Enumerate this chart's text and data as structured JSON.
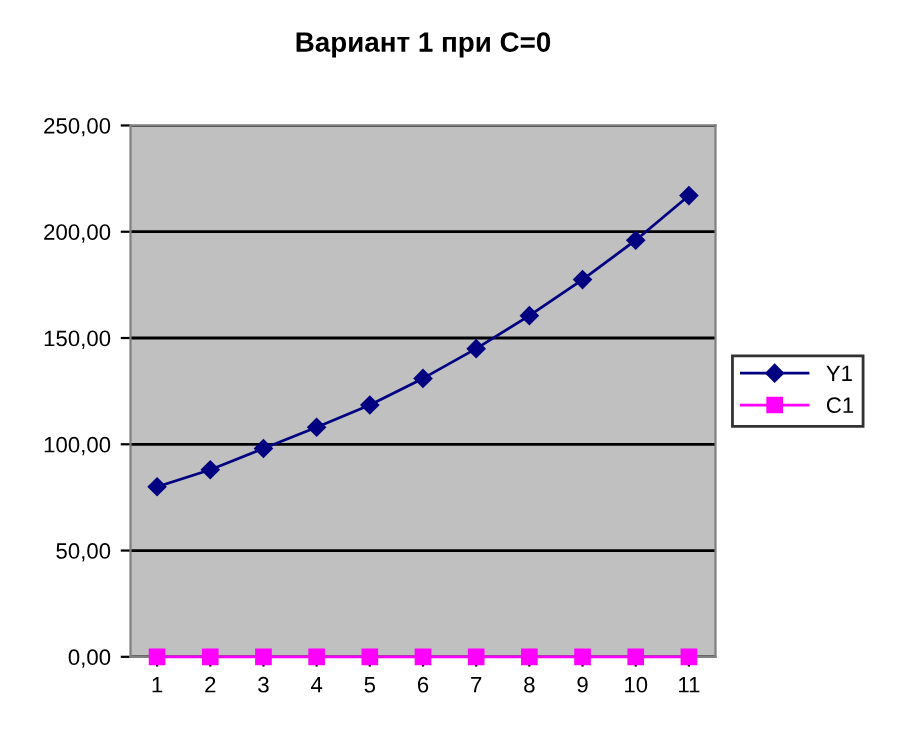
{
  "chart_data": {
    "type": "line",
    "title": "Вариант 1 при C=0",
    "categories": [
      "1",
      "2",
      "3",
      "4",
      "5",
      "6",
      "7",
      "8",
      "9",
      "10",
      "11"
    ],
    "series": [
      {
        "name": "Y1",
        "color": "#000080",
        "marker": "diamond",
        "values": [
          80,
          88,
          98,
          108,
          118.5,
          131,
          145,
          160.5,
          177.5,
          196,
          217
        ]
      },
      {
        "name": "C1",
        "color": "#ff00ff",
        "marker": "square",
        "values": [
          0,
          0,
          0,
          0,
          0,
          0,
          0,
          0,
          0,
          0,
          0
        ]
      }
    ],
    "ylim": [
      0,
      250
    ],
    "yticks": [
      {
        "value": 0,
        "label": "0,00"
      },
      {
        "value": 50,
        "label": "50,00"
      },
      {
        "value": 100,
        "label": "100,00"
      },
      {
        "value": 150,
        "label": "150,00"
      },
      {
        "value": 200,
        "label": "200,00"
      },
      {
        "value": 250,
        "label": "250,00"
      }
    ],
    "grid": "y",
    "legend": "right",
    "line_style": "solid"
  }
}
